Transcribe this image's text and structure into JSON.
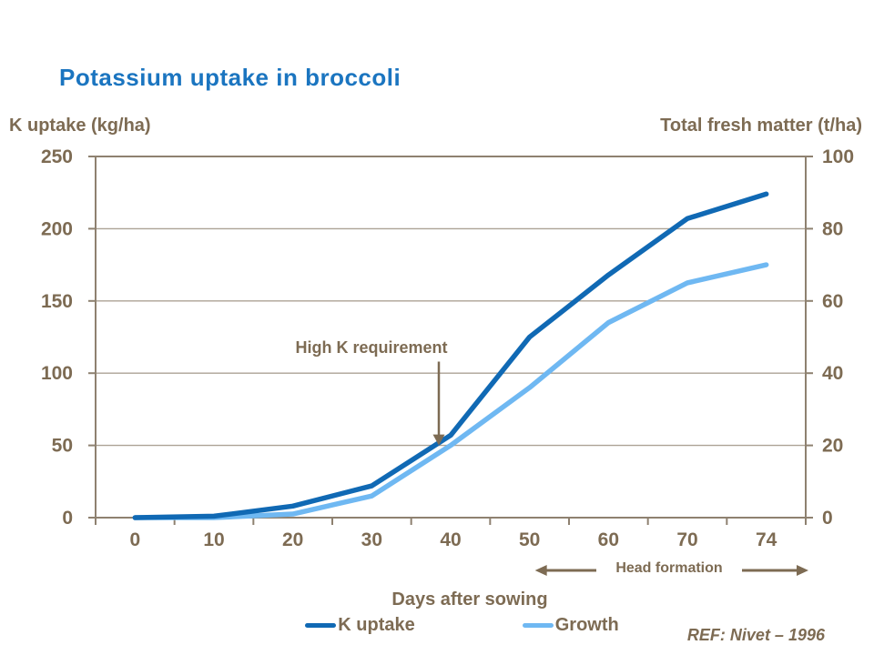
{
  "page": {
    "title": "Potassium uptake in broccoli",
    "ref": "REF: Nivet – 1996"
  },
  "colors": {
    "title_blue": "#1B75C0",
    "text_brown": "#7D6B53",
    "axis_line": "#8E8170",
    "grid_line": "#ACA295",
    "k_uptake_blue": "#1069B4",
    "growth_blue": "#6FB8F2",
    "background": "#FFFFFF"
  },
  "chart_data": {
    "type": "line",
    "title": "Potassium uptake in broccoli",
    "categories": [
      "0",
      "10",
      "20",
      "30",
      "40",
      "50",
      "60",
      "70",
      "74"
    ],
    "series": [
      {
        "name": "K uptake",
        "axis": "left",
        "color": "#1069B4",
        "values": [
          0,
          1,
          8,
          22,
          57,
          125,
          168,
          207,
          224
        ]
      },
      {
        "name": "Growth",
        "axis": "right",
        "color": "#6FB8F2",
        "values": [
          0,
          0,
          1,
          6,
          20,
          36,
          54,
          65,
          70
        ]
      }
    ],
    "left_axis": {
      "label": "K uptake (kg/ha)",
      "ticks": [
        0,
        50,
        100,
        150,
        200,
        250
      ],
      "range": [
        0,
        250
      ]
    },
    "right_axis": {
      "label": "Total fresh matter (t/ha)",
      "ticks": [
        0,
        20,
        40,
        60,
        80,
        100
      ],
      "range": [
        0,
        100
      ]
    },
    "x_axis": {
      "label": "Days after sowing"
    },
    "grid": "horizontal",
    "legend_position": "bottom",
    "annotations": {
      "high_k": {
        "text": "High K requirement",
        "category_x": 3.85,
        "value_from": 108,
        "value_to": 50,
        "axis": "left"
      },
      "head_formation": {
        "label": "Head formation",
        "start_category_index": 5,
        "extends_to": "right-edge"
      }
    }
  }
}
